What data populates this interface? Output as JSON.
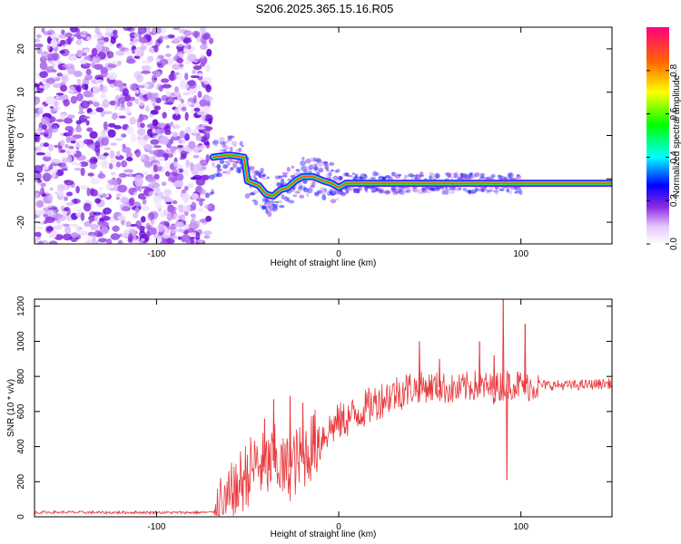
{
  "title": "S206.2025.365.15.16.R05",
  "chart_data": [
    {
      "type": "heatmap",
      "name": "spectrogram",
      "xlabel": "Height of straight line (km)",
      "ylabel": "Frequency (Hz)",
      "xlim": [
        -167,
        150
      ],
      "ylim": [
        -25,
        25
      ],
      "xticks": [
        -100,
        0,
        100
      ],
      "yticks": [
        -20,
        -10,
        0,
        10,
        20
      ],
      "noise_region": {
        "x_range": [
          -167,
          -70
        ],
        "f_range": [
          -25,
          25
        ]
      },
      "signal_track": [
        {
          "x": -69,
          "f": -5
        },
        {
          "x": -60,
          "f": -4.5
        },
        {
          "x": -52,
          "f": -5
        },
        {
          "x": -50,
          "f": -10.5
        },
        {
          "x": -44,
          "f": -11.5
        },
        {
          "x": -40,
          "f": -13.5
        },
        {
          "x": -36,
          "f": -14
        },
        {
          "x": -32,
          "f": -12.5
        },
        {
          "x": -28,
          "f": -12
        },
        {
          "x": -24,
          "f": -10.5
        },
        {
          "x": -20,
          "f": -9.5
        },
        {
          "x": -14,
          "f": -9.5
        },
        {
          "x": -8,
          "f": -10.5
        },
        {
          "x": -4,
          "f": -11
        },
        {
          "x": 0,
          "f": -12
        },
        {
          "x": 4,
          "f": -11
        },
        {
          "x": 20,
          "f": -11
        },
        {
          "x": 40,
          "f": -11
        },
        {
          "x": 60,
          "f": -11
        },
        {
          "x": 80,
          "f": -11
        },
        {
          "x": 96,
          "f": -11
        },
        {
          "x": 120,
          "f": -11
        },
        {
          "x": 150,
          "f": -11
        }
      ],
      "colorbar": {
        "label": "Normalized spectral amplitude",
        "range": [
          0,
          1
        ],
        "ticks": [
          0.0,
          0.2,
          0.4,
          0.6,
          0.8
        ]
      }
    },
    {
      "type": "line",
      "name": "snr",
      "xlabel": "Height of straight line (km)",
      "ylabel": "SNR (10 * v/v)",
      "xlim": [
        -167,
        150
      ],
      "ylim": [
        0,
        1240
      ],
      "xticks": [
        -100,
        0,
        100
      ],
      "yticks": [
        0,
        200,
        400,
        600,
        800,
        1000,
        1200
      ],
      "color": "#e8383d",
      "series": [
        {
          "name": "SNR",
          "x": [
            -167,
            -150,
            -130,
            -110,
            -90,
            -70,
            -65,
            -60,
            -55,
            -50,
            -45,
            -40,
            -35,
            -30,
            -25,
            -20,
            -15,
            -10,
            -5,
            0,
            5,
            10,
            15,
            20,
            25,
            30,
            35,
            40,
            45,
            50,
            55,
            60,
            65,
            70,
            75,
            80,
            85,
            90,
            95,
            100,
            105,
            110,
            120,
            130,
            140,
            150
          ],
          "y": [
            25,
            26,
            24,
            25,
            24,
            25,
            40,
            90,
            180,
            250,
            300,
            280,
            330,
            260,
            300,
            340,
            400,
            450,
            500,
            540,
            560,
            590,
            620,
            650,
            680,
            700,
            720,
            730,
            740,
            740,
            740,
            730,
            720,
            740,
            750,
            740,
            730,
            750,
            760,
            750,
            745,
            750,
            750,
            750,
            755,
            760
          ]
        },
        {
          "name": "spikes",
          "x": [
            -41,
            -36,
            -27,
            -20,
            -14,
            44,
            55,
            77,
            85,
            90,
            92,
            102
          ],
          "y": [
            560,
            670,
            690,
            650,
            580,
            1000,
            900,
            1000,
            920,
            1240,
            210,
            1100
          ]
        }
      ]
    }
  ]
}
